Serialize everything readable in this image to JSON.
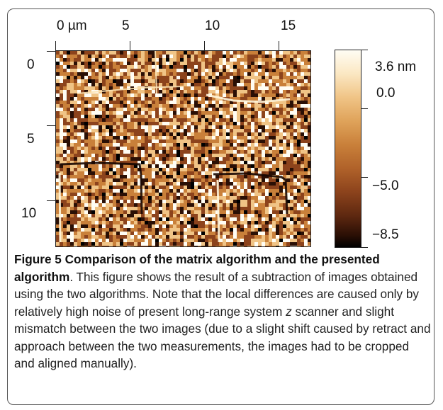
{
  "figure": {
    "x_tick_labels": [
      "0 µm",
      "5",
      "10",
      "15"
    ],
    "y_tick_labels": [
      "0",
      "5",
      "10"
    ],
    "colorbar_labels": [
      "3.6 nm",
      "0.0",
      "−5.0",
      "−8.5"
    ],
    "colorbar_colors": [
      "#fffdf4",
      "#f0c486",
      "#c9803a",
      "#8c431c",
      "#2a0f05",
      "#000000"
    ]
  },
  "caption": {
    "title": "Figure 5 Comparison of the matrix algorithm and the presented algorithm",
    "text_before_italic": ". This figure shows the result of a subtraction of images obtained using the two algorithms. Note that the local differences are caused only by relatively high noise of present long-range system ",
    "italic": "z",
    "text_after_italic": " scanner and slight mismatch between the two images (due to a slight shift caused by retract and approach between the two measurements, the images had to be cropped and aligned manually)."
  }
}
